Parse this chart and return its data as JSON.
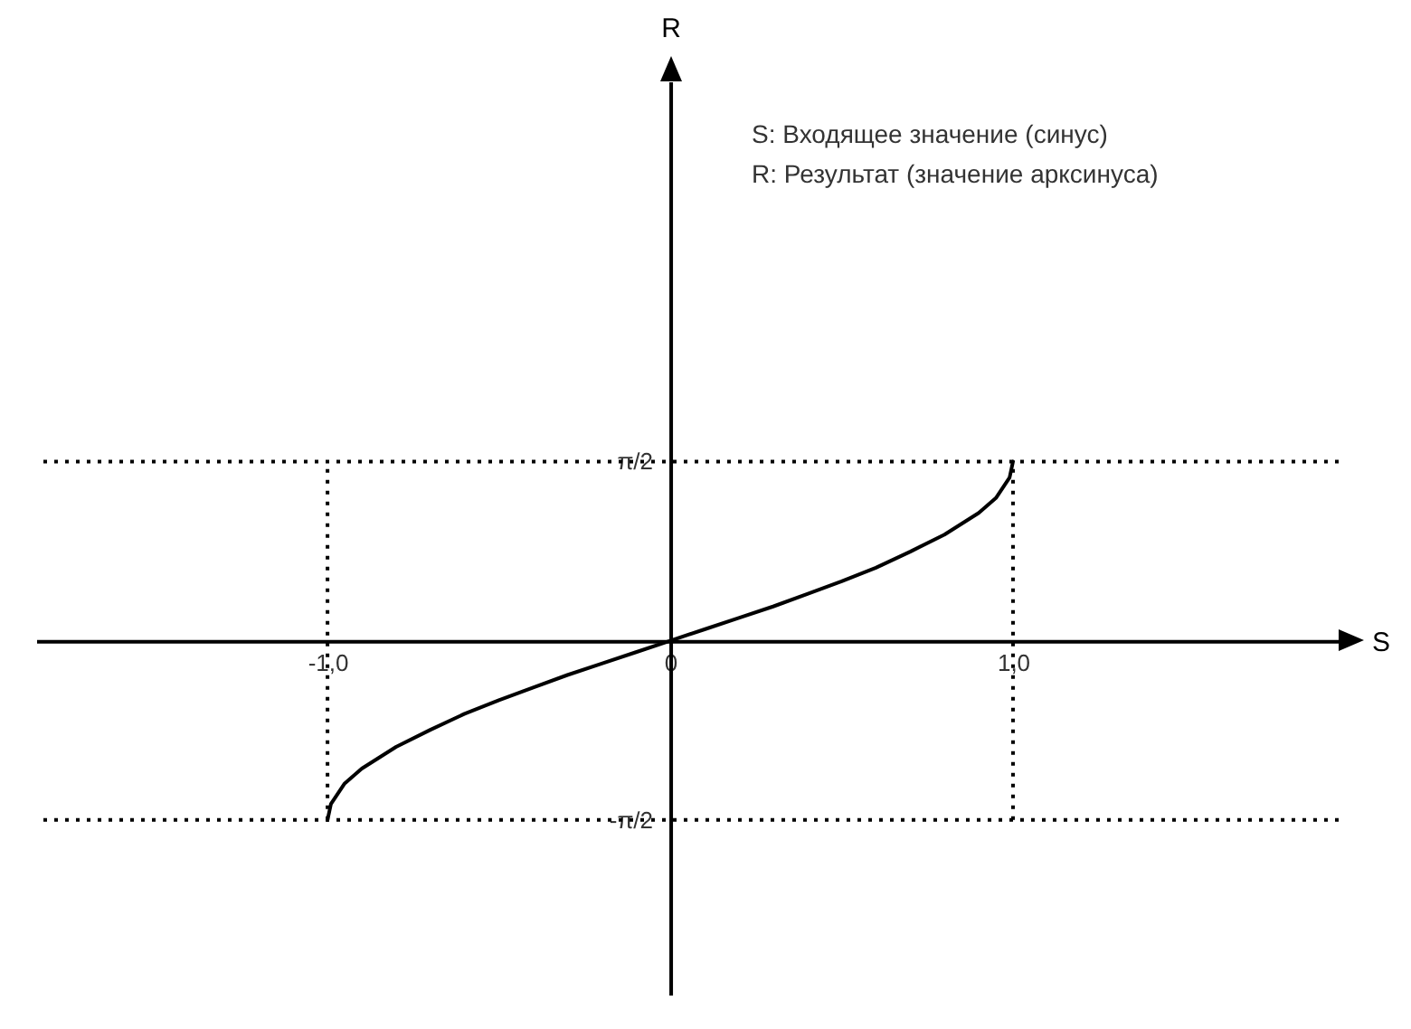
{
  "chart_data": {
    "type": "line",
    "xlabel": "S",
    "ylabel": "R",
    "annotations": [
      "S: Входящее значение (синус)",
      "R: Результат (значение арксинуса)"
    ],
    "x": [
      -1,
      -0.99,
      -0.95,
      -0.9,
      -0.8,
      -0.7,
      -0.6,
      -0.5,
      -0.4,
      -0.3,
      -0.2,
      -0.1,
      0,
      0.1,
      0.2,
      0.3,
      0.4,
      0.5,
      0.6,
      0.7,
      0.8,
      0.9,
      0.95,
      0.99,
      1
    ],
    "series": [
      {
        "color": "#000000",
        "values": [
          -1.57,
          -1.43,
          -1.25,
          -1.12,
          -0.93,
          -0.78,
          -0.64,
          -0.52,
          -0.41,
          -0.3,
          -0.2,
          -0.1,
          0,
          0.1,
          0.2,
          0.3,
          0.41,
          0.52,
          0.64,
          0.78,
          0.93,
          1.12,
          1.25,
          1.43,
          1.57
        ]
      }
    ],
    "xlim": [
      -1.85,
      1.95
    ],
    "ylim": [
      -3.1,
      4.9
    ],
    "xticks": [
      {
        "value": -1,
        "label": "-1,0"
      },
      0,
      {
        "value": 1,
        "label": "1,0"
      }
    ],
    "yticks": [
      {
        "value": -1.57,
        "label": "-π/2"
      },
      {
        "value": 1.57,
        "label": "π/2"
      }
    ],
    "ref_lines": [
      {
        "axis": "x",
        "value": -1,
        "color": "#000000",
        "line_style": "dotted"
      },
      {
        "axis": "x",
        "value": 1,
        "color": "#000000",
        "line_style": "dotted"
      },
      {
        "axis": "y",
        "value": 1.57,
        "color": "#000000",
        "line_style": "dotted"
      },
      {
        "axis": "y",
        "value": -1.57,
        "color": "#000000",
        "line_style": "dotted"
      }
    ],
    "grid": false,
    "line_style": "solid",
    "marker": "none"
  }
}
